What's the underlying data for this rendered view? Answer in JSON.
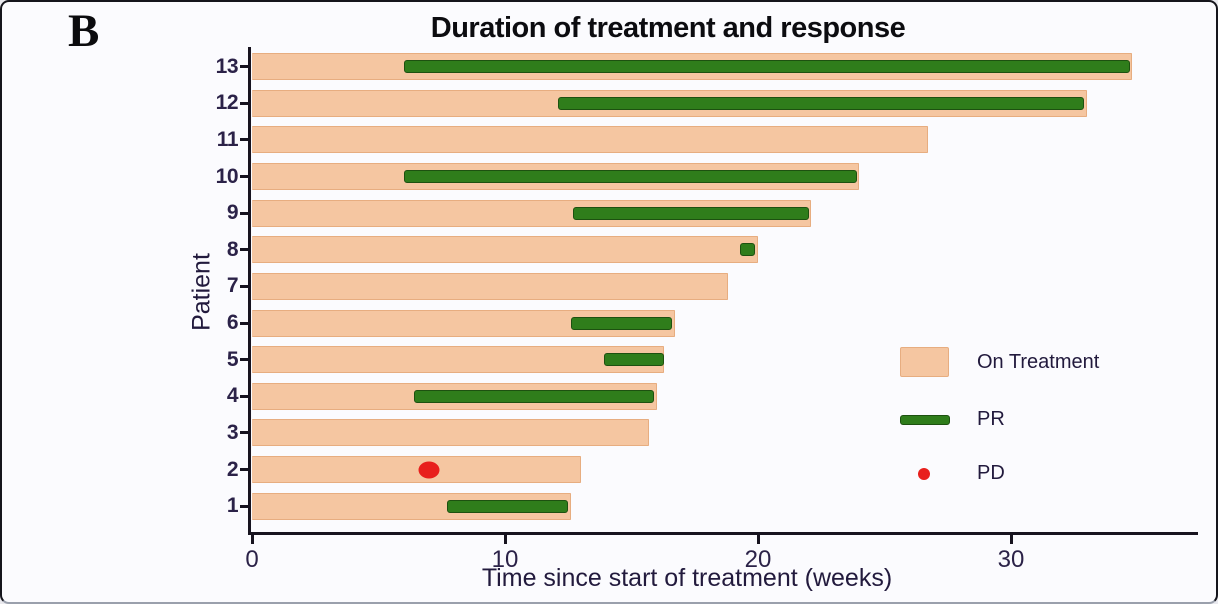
{
  "panel_label": "B",
  "title": "Duration of treatment and response",
  "xlabel": "Time since start of treatment (weeks)",
  "ylabel": "Patient",
  "legend": {
    "on_treatment": "On Treatment",
    "pr": "PR",
    "pd": "PD"
  },
  "colors": {
    "background": "#fbfbfe",
    "on_treatment_bar": "#f5c6a1",
    "pr_green": "#2f7d1b",
    "pd_red": "#e8201d",
    "axis": "#17131f",
    "tick_text": "#2b2248"
  },
  "chart_data": {
    "type": "bar",
    "subtype": "swimmer-plot",
    "orientation": "horizontal",
    "title": "Duration of treatment and response",
    "xlabel": "Time since start of treatment (weeks)",
    "ylabel": "Patient",
    "x_ticks": [
      0,
      10,
      20,
      30
    ],
    "xlim": [
      0,
      37.3
    ],
    "grid": false,
    "legend_position": "right-middle",
    "legend_entries": [
      {
        "label": "On Treatment",
        "marker": "bar",
        "color": "#f5c6a1"
      },
      {
        "label": "PR",
        "marker": "line",
        "color": "#2f7d1b"
      },
      {
        "label": "PD",
        "marker": "dot",
        "color": "#e8201d"
      }
    ],
    "patients": [
      {
        "id": 13,
        "on_treatment_weeks": 34.8,
        "pr_start": 6.0,
        "pr_end": 34.7,
        "pd_week": null
      },
      {
        "id": 12,
        "on_treatment_weeks": 33.0,
        "pr_start": 12.1,
        "pr_end": 32.9,
        "pd_week": null
      },
      {
        "id": 11,
        "on_treatment_weeks": 26.7,
        "pr_start": null,
        "pr_end": null,
        "pd_week": null
      },
      {
        "id": 10,
        "on_treatment_weeks": 24.0,
        "pr_start": 6.0,
        "pr_end": 23.9,
        "pd_week": null
      },
      {
        "id": 9,
        "on_treatment_weeks": 22.1,
        "pr_start": 12.7,
        "pr_end": 22.0,
        "pd_week": null
      },
      {
        "id": 8,
        "on_treatment_weeks": 20.0,
        "pr_start": 19.3,
        "pr_end": 19.9,
        "pd_week": null
      },
      {
        "id": 7,
        "on_treatment_weeks": 18.8,
        "pr_start": null,
        "pr_end": null,
        "pd_week": null
      },
      {
        "id": 6,
        "on_treatment_weeks": 16.7,
        "pr_start": 12.6,
        "pr_end": 16.6,
        "pd_week": null
      },
      {
        "id": 5,
        "on_treatment_weeks": 16.3,
        "pr_start": 13.9,
        "pr_end": 16.3,
        "pd_week": null
      },
      {
        "id": 4,
        "on_treatment_weeks": 16.0,
        "pr_start": 6.4,
        "pr_end": 15.9,
        "pd_week": null
      },
      {
        "id": 3,
        "on_treatment_weeks": 15.7,
        "pr_start": null,
        "pr_end": null,
        "pd_week": null
      },
      {
        "id": 2,
        "on_treatment_weeks": 13.0,
        "pr_start": null,
        "pr_end": null,
        "pd_week": 7.0
      },
      {
        "id": 1,
        "on_treatment_weeks": 12.6,
        "pr_start": 7.7,
        "pr_end": 12.5,
        "pd_week": null
      }
    ]
  }
}
